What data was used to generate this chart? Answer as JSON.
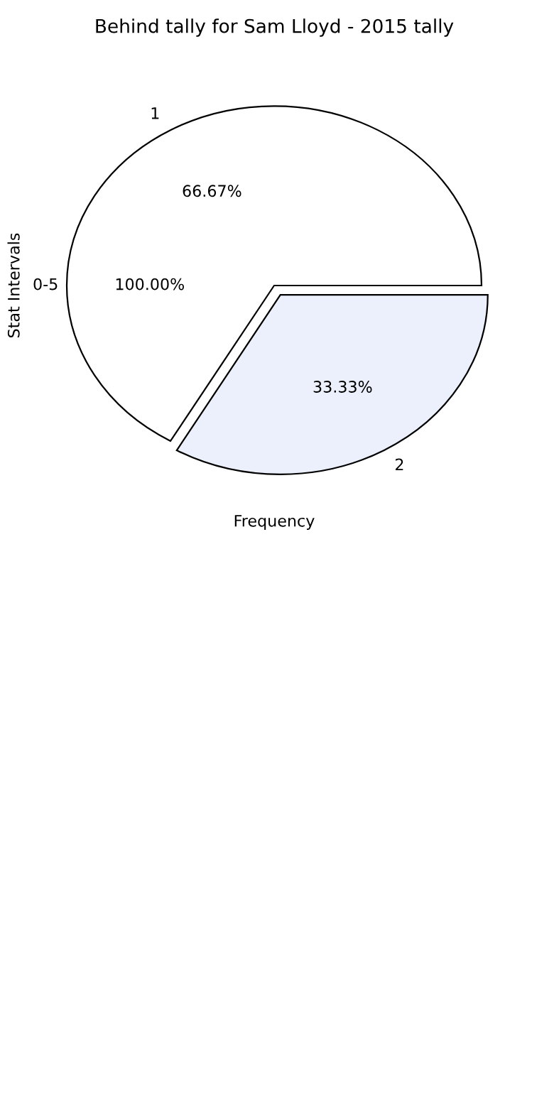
{
  "chart_data": {
    "type": "pie",
    "title": "Behind tally for Sam Lloyd - 2015 tally",
    "xlabel": "Frequency",
    "ylabel": "Stat Intervals",
    "categories": [
      "1",
      "2"
    ],
    "values": [
      66.67,
      33.33
    ],
    "colors": [
      "#ffffff",
      "#ebf0fc"
    ],
    "value_labels": [
      "66.67%",
      "33.33%"
    ],
    "annotations": [
      "0-5",
      "100.00%"
    ]
  }
}
